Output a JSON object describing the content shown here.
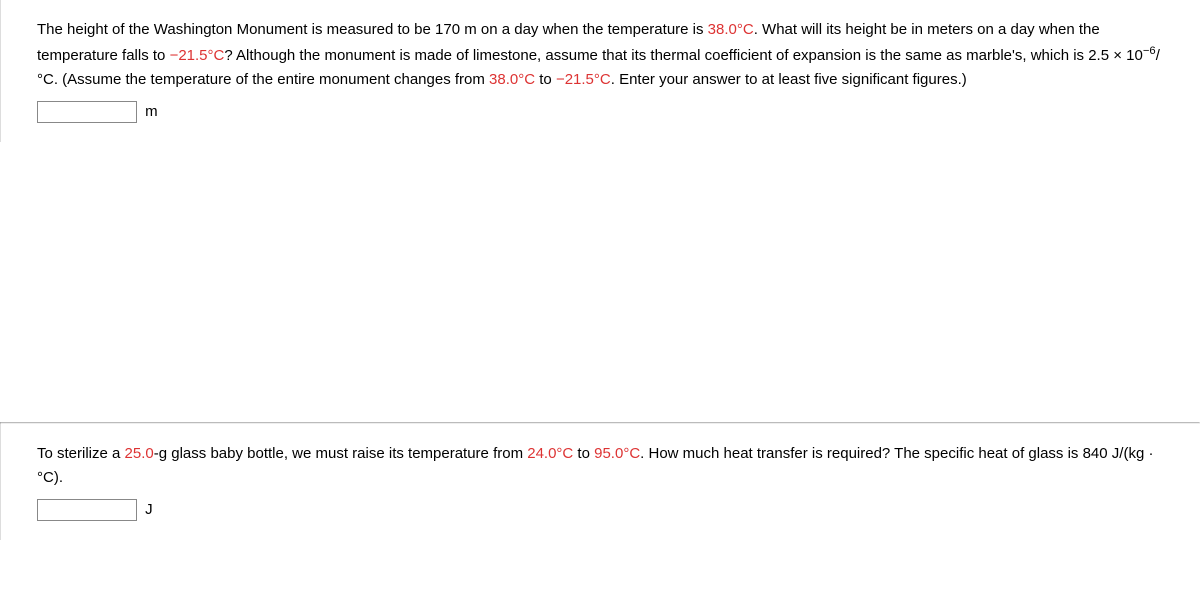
{
  "problem1": {
    "text_parts": [
      "The height of the Washington Monument is measured to be 170 m on a day when the temperature is ",
      "38.0°C",
      ". What will its height be in meters on a day when the temperature falls to ",
      "−21.5°C",
      "? Although the monument is made of limestone, assume that its thermal coefficient of expansion is the same as marble's, which is 2.5 × 10",
      "−6",
      "/°C. (Assume the temperature of the entire monument changes from ",
      "38.0°C",
      " to ",
      "−21.5°C",
      ". Enter your answer to at least five significant figures.)"
    ],
    "unit": "m"
  },
  "problem2": {
    "text_parts": [
      "To sterilize a ",
      "25.0",
      "-g glass baby bottle, we must raise its temperature from ",
      "24.0°C",
      " to ",
      "95.0°C",
      ". How much heat transfer is required? The specific heat of glass is 840 J/(kg · °C)."
    ],
    "unit": "J"
  }
}
